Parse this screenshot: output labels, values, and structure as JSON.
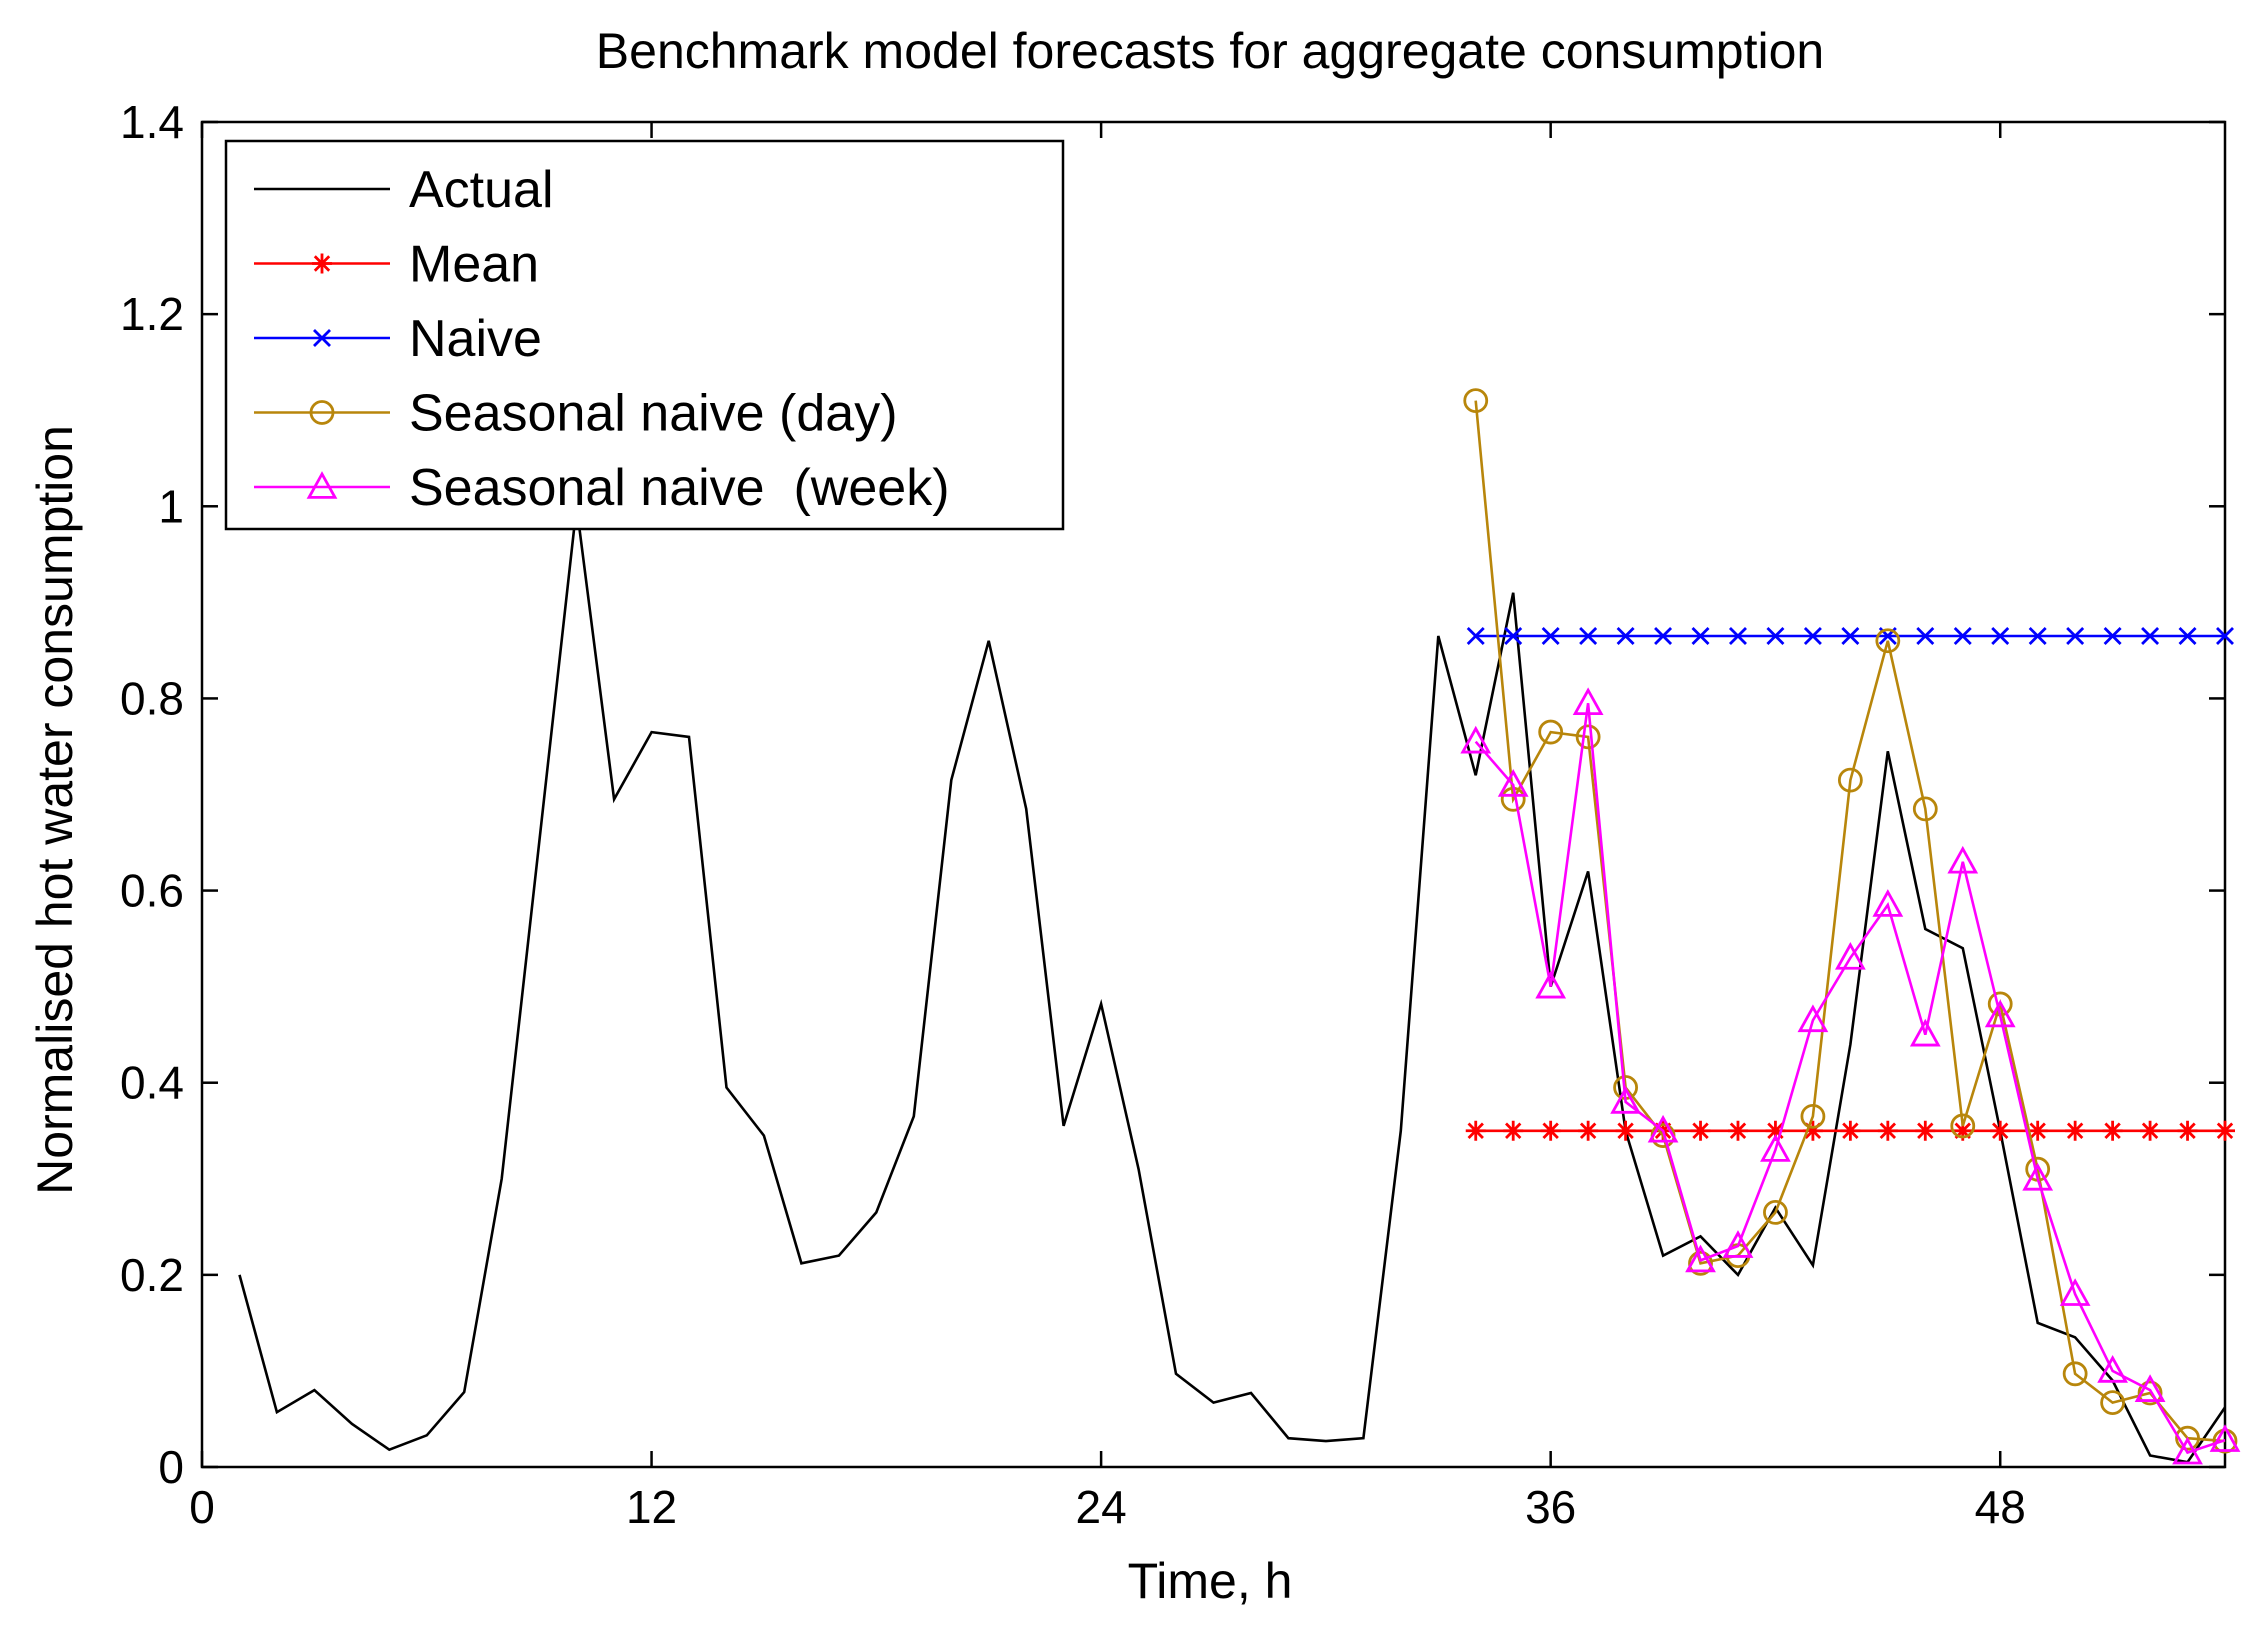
{
  "chart_data": {
    "type": "line",
    "title": "Benchmark model forecasts for aggregate consumption",
    "xlabel": "Time, h",
    "ylabel": "Normalised hot water consumption",
    "xlim": [
      0,
      54
    ],
    "ylim": [
      0,
      1.4
    ],
    "xticks": [
      0,
      12,
      24,
      36,
      48
    ],
    "yticks": [
      0,
      0.2,
      0.4,
      0.6,
      0.8,
      1,
      1.2,
      1.4
    ],
    "ytick_labels": [
      "0",
      "0.2",
      "0.4",
      "0.6",
      "0.8",
      "1",
      "1.2",
      "1.4"
    ],
    "legend_position": "top-left",
    "series": [
      {
        "name": "Actual",
        "color": "#000000",
        "marker": "none",
        "x": [
          1,
          2,
          3,
          4,
          5,
          6,
          7,
          8,
          9,
          10,
          11,
          12,
          13,
          14,
          15,
          16,
          17,
          18,
          19,
          20,
          21,
          22,
          23,
          24,
          25,
          26,
          27,
          28,
          29,
          30,
          31,
          32,
          33,
          34,
          35,
          36,
          37,
          38,
          39,
          40,
          41,
          42,
          43,
          44,
          45,
          46,
          47,
          48,
          49,
          50,
          51,
          52,
          53,
          54
        ],
        "values": [
          0.2,
          0.057,
          0.08,
          0.045,
          0.018,
          0.033,
          0.078,
          0.3,
          0.65,
          1.0,
          0.695,
          0.765,
          0.76,
          0.395,
          0.345,
          0.212,
          0.22,
          0.265,
          0.365,
          0.715,
          0.86,
          0.685,
          0.355,
          0.482,
          0.31,
          0.097,
          0.067,
          0.077,
          0.03,
          0.027,
          0.03,
          0.35,
          0.865,
          0.72,
          0.91,
          0.5,
          0.62,
          0.35,
          0.22,
          0.24,
          0.2,
          0.27,
          0.21,
          0.44,
          0.745,
          0.56,
          0.54,
          0.35,
          0.15,
          0.135,
          0.09,
          0.012,
          0.005,
          0.062
        ]
      },
      {
        "name": "Mean",
        "color": "#ff0000",
        "marker": "star",
        "x": [
          34,
          35,
          36,
          37,
          38,
          39,
          40,
          41,
          42,
          43,
          44,
          45,
          46,
          47,
          48,
          49,
          50,
          51,
          52,
          53,
          54
        ],
        "values": [
          0.35,
          0.35,
          0.35,
          0.35,
          0.35,
          0.35,
          0.35,
          0.35,
          0.35,
          0.35,
          0.35,
          0.35,
          0.35,
          0.35,
          0.35,
          0.35,
          0.35,
          0.35,
          0.35,
          0.35,
          0.35
        ]
      },
      {
        "name": "Naive",
        "color": "#0000ff",
        "marker": "x",
        "x": [
          34,
          35,
          36,
          37,
          38,
          39,
          40,
          41,
          42,
          43,
          44,
          45,
          46,
          47,
          48,
          49,
          50,
          51,
          52,
          53,
          54
        ],
        "values": [
          0.865,
          0.865,
          0.865,
          0.865,
          0.865,
          0.865,
          0.865,
          0.865,
          0.865,
          0.865,
          0.865,
          0.865,
          0.865,
          0.865,
          0.865,
          0.865,
          0.865,
          0.865,
          0.865,
          0.865,
          0.865
        ]
      },
      {
        "name": "Seasonal naive (day)",
        "color": "#b8860b",
        "marker": "circle",
        "x": [
          34,
          35,
          36,
          37,
          38,
          39,
          40,
          41,
          42,
          43,
          44,
          45,
          46,
          47,
          48,
          49,
          50,
          51,
          52,
          53,
          54
        ],
        "values": [
          1.11,
          0.695,
          0.765,
          0.76,
          0.395,
          0.345,
          0.212,
          0.22,
          0.265,
          0.365,
          0.715,
          0.86,
          0.685,
          0.355,
          0.482,
          0.31,
          0.097,
          0.067,
          0.077,
          0.03,
          0.027
        ]
      },
      {
        "name": "Seasonal naive  (week)",
        "color": "#ff00ff",
        "marker": "triangle",
        "x": [
          34,
          35,
          36,
          37,
          38,
          39,
          40,
          41,
          42,
          43,
          44,
          45,
          46,
          47,
          48,
          49,
          50,
          51,
          52,
          53,
          54
        ],
        "values": [
          0.755,
          0.71,
          0.5,
          0.795,
          0.38,
          0.35,
          0.215,
          0.23,
          0.33,
          0.465,
          0.53,
          0.585,
          0.45,
          0.63,
          0.47,
          0.3,
          0.18,
          0.1,
          0.08,
          0.015,
          0.028
        ]
      }
    ]
  }
}
